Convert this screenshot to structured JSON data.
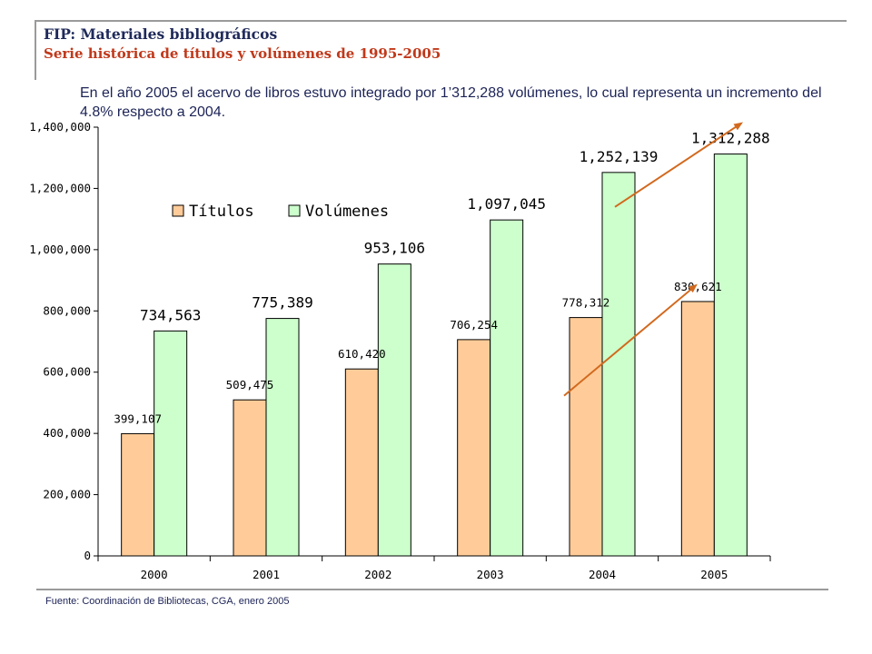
{
  "header": {
    "title": "FIP: Materiales bibliográficos",
    "subtitle": "Serie histórica de títulos y volúmenes de 1995-2005"
  },
  "note": "En el año 2005 el acervo de libros estuvo integrado por 1’312,288 volúmenes, lo cual representa un incremento del 4.8% respecto a 2004.",
  "source": "Fuente: Coordinación de Bibliotecas, CGA, enero 2005",
  "colors": {
    "titulos": "#ffcc99",
    "volumenes": "#ccffcc",
    "arrow": "#d2691e"
  },
  "chart_data": {
    "type": "bar",
    "categories": [
      "2000",
      "2001",
      "2002",
      "2003",
      "2004",
      "2005"
    ],
    "series": [
      {
        "name": "Títulos",
        "values": [
          399107,
          509475,
          610420,
          706254,
          778312,
          830621
        ],
        "labels": [
          "399,107",
          "509,475",
          "610,420",
          "706,254",
          "778,312",
          "830,621"
        ]
      },
      {
        "name": "Volúmenes",
        "values": [
          734563,
          775389,
          953106,
          1097045,
          1252139,
          1312288
        ],
        "labels": [
          "734,563",
          "775,389",
          "953,106",
          "1,097,045",
          "1,252,139",
          "1,312,288"
        ]
      }
    ],
    "ylim": [
      0,
      1400000
    ],
    "yticks": [
      0,
      200000,
      400000,
      600000,
      800000,
      1000000,
      1200000,
      1400000
    ],
    "ytick_labels": [
      "0",
      "200,000",
      "400,000",
      "600,000",
      "800,000",
      "1,000,000",
      "1,200,000",
      "1,400,000"
    ],
    "legend": "top-left",
    "grid": false,
    "annotations": [
      {
        "type": "arrow",
        "series": "Títulos",
        "from": "2004",
        "to": "2005"
      },
      {
        "type": "arrow",
        "series": "Volúmenes",
        "from": "2004",
        "to": "2005"
      }
    ]
  }
}
